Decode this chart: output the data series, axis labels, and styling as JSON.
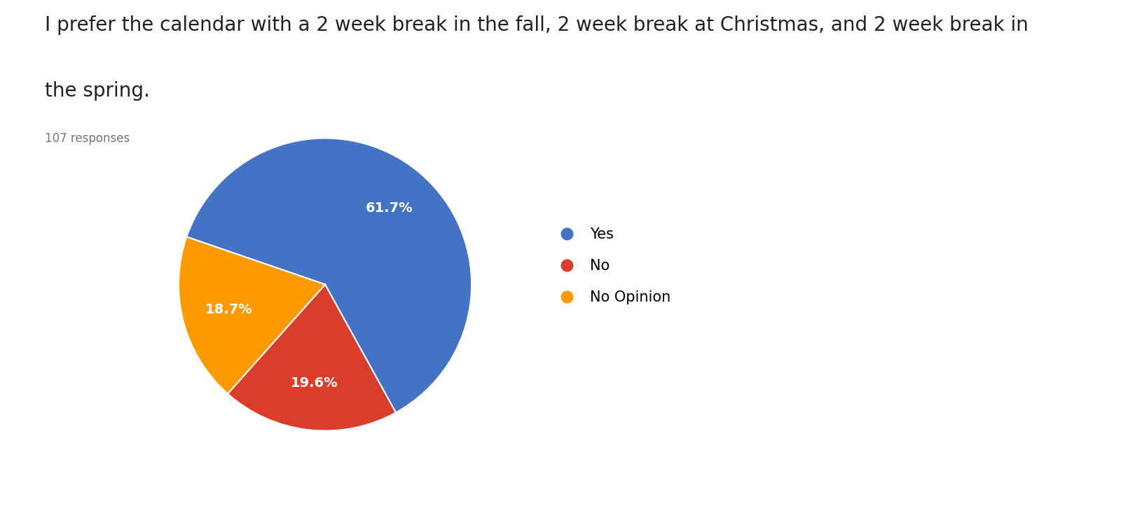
{
  "title_line1": "I prefer the calendar with a 2 week break in the fall, 2 week break at Christmas, and 2 week break in",
  "title_line2": "the spring.",
  "subtitle": "107 responses",
  "labels": [
    "Yes",
    "No",
    "No Opinion"
  ],
  "values": [
    61.7,
    19.6,
    18.7
  ],
  "colors": [
    "#4472C4",
    "#DB3D2B",
    "#FF9900"
  ],
  "text_color_slices": "#ffffff",
  "legend_labels": [
    "Yes",
    "No",
    "No Opinion"
  ],
  "background_color": "#ffffff",
  "title_fontsize": 20,
  "subtitle_fontsize": 12,
  "autopct_fontsize": 14,
  "legend_fontsize": 15,
  "startangle": 161
}
